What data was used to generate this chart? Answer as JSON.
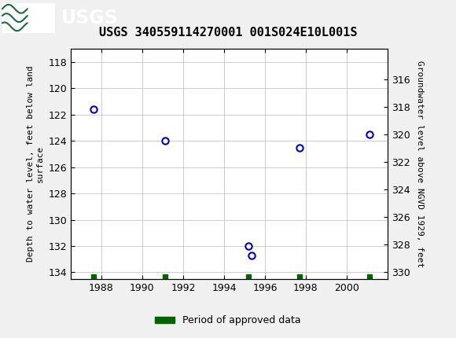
{
  "title": "USGS 340559114270001 001S024E10L001S",
  "x_data": [
    1987.6,
    1991.1,
    1995.2,
    1995.35,
    1997.7,
    2001.1
  ],
  "y_left_data": [
    121.6,
    124.0,
    132.0,
    132.7,
    124.5,
    123.5
  ],
  "xlim": [
    1986.5,
    2002.0
  ],
  "ylim_left": [
    117,
    134.5
  ],
  "ylim_right_top": 330.5,
  "ylim_right_bottom": 313.8,
  "yticks_left": [
    118,
    120,
    122,
    124,
    126,
    128,
    130,
    132,
    134
  ],
  "yticks_right": [
    316,
    318,
    320,
    322,
    324,
    326,
    328,
    330
  ],
  "xticks": [
    1988,
    1990,
    1992,
    1994,
    1996,
    1998,
    2000
  ],
  "ylabel_left": "Depth to water level, feet below land\nsurface",
  "ylabel_right": "Groundwater level above NGVD 1929, feet",
  "marker_color": "#0000cc",
  "marker_facecolor": "white",
  "grid_color": "#bbbbbb",
  "bg_color": "#f0f0f0",
  "plot_bg_color": "#ffffff",
  "header_bg_color": "#1a6b3c",
  "header_text_color": "#ffffff",
  "green_squares_x": [
    1987.6,
    1991.1,
    1995.2,
    1997.7,
    2001.1
  ],
  "green_square_color": "#006600",
  "legend_label": "Period of approved data",
  "title_fontsize": 11
}
